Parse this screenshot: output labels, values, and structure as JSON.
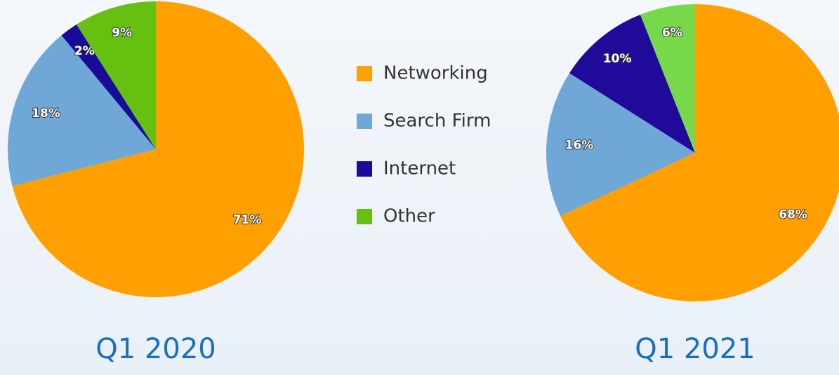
{
  "chart_data": [
    {
      "type": "pie",
      "title": "Q1 2020",
      "categories": [
        "Networking",
        "Search Firm",
        "Internet",
        "Other"
      ],
      "values": [
        71,
        18,
        2,
        9
      ],
      "value_labels": [
        "71%",
        "18%",
        "2%",
        "9%"
      ],
      "colors": [
        "#ffa000",
        "#6fa8d6",
        "#1a0a99",
        "#66c010"
      ]
    },
    {
      "type": "pie",
      "title": "Q1 2021",
      "categories": [
        "Networking",
        "Search Firm",
        "Internet",
        "Other"
      ],
      "values": [
        68,
        16,
        10,
        6
      ],
      "value_labels": [
        "68%",
        "16%",
        "10%",
        "6%"
      ],
      "colors": [
        "#ffa000",
        "#6fa8d6",
        "#1f0a9a",
        "#77d94a"
      ]
    }
  ]
}
